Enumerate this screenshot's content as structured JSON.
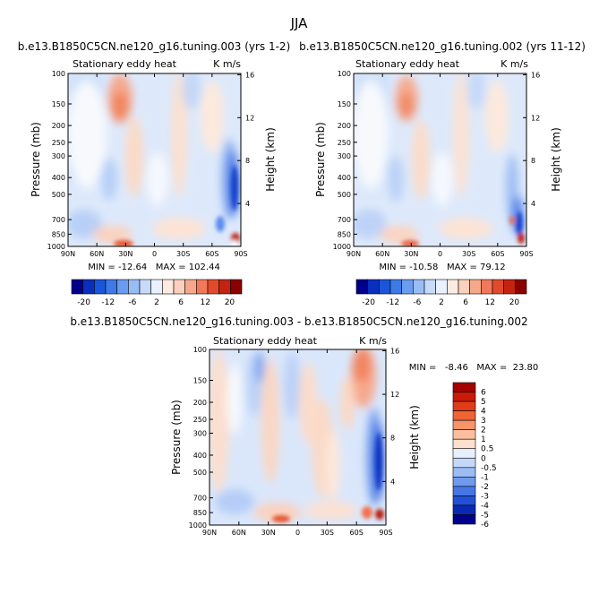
{
  "page_title": "JJA",
  "chart_data": [
    {
      "type": "heatmap",
      "title": "b.e13.B1850C5CN.ne120_g16.tuning.003 (yrs 1-2)",
      "subtitle_left": "Stationary eddy heat",
      "subtitle_right": "K m/s",
      "ylabel": "Pressure (mb)",
      "ylabel_right": "Height (km)",
      "xlabel": "",
      "x_ticks": [
        "90N",
        "60N",
        "30N",
        "0",
        "30S",
        "60S",
        "90S"
      ],
      "y_ticks": [
        "100",
        "150",
        "200",
        "250",
        "300",
        "400",
        "500",
        "700",
        "850",
        "1000"
      ],
      "y_ticks_right": [
        "16",
        "12",
        "8",
        "4"
      ],
      "stats_text": "MIN = -12.64   MAX = 102.44",
      "min": -12.64,
      "max": 102.44,
      "colorbar_ticks": [
        "-20",
        "-12",
        "-6",
        "2",
        "6",
        "12",
        "20"
      ],
      "colorbar_levels": [
        -20,
        -16,
        -12,
        -8,
        -6,
        -4,
        -2,
        0,
        2,
        4,
        6,
        8,
        12,
        16,
        20
      ]
    },
    {
      "type": "heatmap",
      "title": "b.e13.B1850C5CN.ne120_g16.tuning.002 (yrs 11-12)",
      "subtitle_left": "Stationary eddy heat",
      "subtitle_right": "K m/s",
      "ylabel": "Pressure (mb)",
      "ylabel_right": "Height (km)",
      "xlabel": "",
      "x_ticks": [
        "90N",
        "60N",
        "30N",
        "0",
        "30S",
        "60S",
        "90S"
      ],
      "y_ticks": [
        "100",
        "150",
        "200",
        "250",
        "300",
        "400",
        "500",
        "700",
        "850",
        "1000"
      ],
      "y_ticks_right": [
        "16",
        "12",
        "8",
        "4"
      ],
      "stats_text": "MIN = -10.58   MAX = 79.12",
      "min": -10.58,
      "max": 79.12,
      "colorbar_ticks": [
        "-20",
        "-12",
        "-6",
        "2",
        "6",
        "12",
        "20"
      ],
      "colorbar_levels": [
        -20,
        -16,
        -12,
        -8,
        -6,
        -4,
        -2,
        0,
        2,
        4,
        6,
        8,
        12,
        16,
        20
      ]
    },
    {
      "type": "heatmap",
      "title": "b.e13.B1850C5CN.ne120_g16.tuning.003 - b.e13.B1850C5CN.ne120_g16.tuning.002",
      "subtitle_left": "Stationary eddy heat",
      "subtitle_right": "K m/s",
      "ylabel": "Pressure (mb)",
      "ylabel_right": "Height (km)",
      "xlabel": "",
      "x_ticks": [
        "90N",
        "60N",
        "30N",
        "0",
        "30S",
        "60S",
        "90S"
      ],
      "y_ticks": [
        "100",
        "150",
        "200",
        "250",
        "300",
        "400",
        "500",
        "700",
        "850",
        "1000"
      ],
      "y_ticks_right": [
        "16",
        "12",
        "8",
        "4"
      ],
      "stats_text": "MIN =   -8.46   MAX =  23.80",
      "min": -8.46,
      "max": 23.8,
      "colorbar_ticks": [
        "6",
        "5",
        "4",
        "3",
        "2",
        "1",
        "0.5",
        "0",
        "-0.5",
        "-1",
        "-2",
        "-3",
        "-4",
        "-5",
        "-6"
      ],
      "colorbar_levels": [
        6,
        5,
        4,
        3,
        2,
        1,
        0.5,
        0,
        -0.5,
        -1,
        -2,
        -3,
        -4,
        -5,
        -6
      ]
    }
  ],
  "palette": {
    "diverging": [
      "#00008b",
      "#0a2fbf",
      "#1a56dc",
      "#3d7ae8",
      "#6a9cf0",
      "#98bdf5",
      "#c6dafa",
      "#e8f1fd",
      "#fdebe2",
      "#fbd0bc",
      "#f7a88a",
      "#f1785a",
      "#e34a2c",
      "#c52312",
      "#8b0000"
    ],
    "diff": [
      "#a40000",
      "#cc1a08",
      "#e33b18",
      "#f06536",
      "#f6946a",
      "#fbbf9f",
      "#fde0cf",
      "#e7f0fd",
      "#c4d8f9",
      "#9cbcf4",
      "#6f9aee",
      "#4676e6",
      "#2350d6",
      "#0a2ab6",
      "#00008b"
    ]
  }
}
